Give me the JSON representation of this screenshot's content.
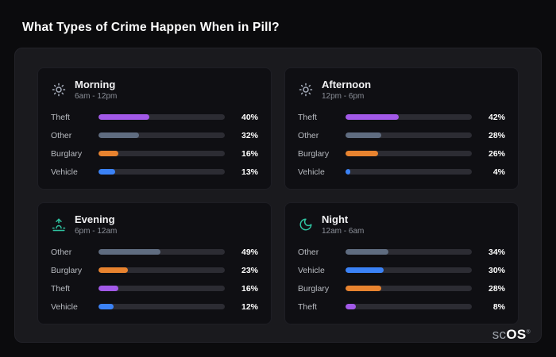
{
  "page": {
    "title": "What Types of Crime Happen When in Pill?"
  },
  "logo": {
    "prefix": "sc",
    "suffix": "OS",
    "registered": "®"
  },
  "colors": {
    "theft": "#a259e8",
    "other": "#5f6c80",
    "burglary": "#e8832f",
    "vehicle": "#3b82f6",
    "accent_teal": "#2fc2a0",
    "background": "#0b0b0d",
    "panel": "#1a1a1e",
    "card": "#0f0f13"
  },
  "chart_data": {
    "type": "bar",
    "orientation": "horizontal",
    "title": "What Types of Crime Happen When in Pill?",
    "unit": "%",
    "xlim": [
      0,
      100
    ],
    "panels": [
      {
        "title": "Morning",
        "subtitle": "6am - 12pm",
        "icon": "sun-icon",
        "icon_color": "#a6adbb",
        "rows": [
          {
            "label": "Theft",
            "value": 40,
            "display": "40%",
            "color": "#a259e8"
          },
          {
            "label": "Other",
            "value": 32,
            "display": "32%",
            "color": "#5f6c80"
          },
          {
            "label": "Burglary",
            "value": 16,
            "display": "16%",
            "color": "#e8832f"
          },
          {
            "label": "Vehicle",
            "value": 13,
            "display": "13%",
            "color": "#3b82f6"
          }
        ]
      },
      {
        "title": "Afternoon",
        "subtitle": "12pm - 6pm",
        "icon": "sun-icon",
        "icon_color": "#a6adbb",
        "rows": [
          {
            "label": "Theft",
            "value": 42,
            "display": "42%",
            "color": "#a259e8"
          },
          {
            "label": "Other",
            "value": 28,
            "display": "28%",
            "color": "#5f6c80"
          },
          {
            "label": "Burglary",
            "value": 26,
            "display": "26%",
            "color": "#e8832f"
          },
          {
            "label": "Vehicle",
            "value": 4,
            "display": "4%",
            "color": "#3b82f6"
          }
        ]
      },
      {
        "title": "Evening",
        "subtitle": "6pm - 12am",
        "icon": "sunset-icon",
        "icon_color": "#2fc2a0",
        "rows": [
          {
            "label": "Other",
            "value": 49,
            "display": "49%",
            "color": "#5f6c80"
          },
          {
            "label": "Burglary",
            "value": 23,
            "display": "23%",
            "color": "#e8832f"
          },
          {
            "label": "Theft",
            "value": 16,
            "display": "16%",
            "color": "#a259e8"
          },
          {
            "label": "Vehicle",
            "value": 12,
            "display": "12%",
            "color": "#3b82f6"
          }
        ]
      },
      {
        "title": "Night",
        "subtitle": "12am - 6am",
        "icon": "moon-icon",
        "icon_color": "#2fc2a0",
        "rows": [
          {
            "label": "Other",
            "value": 34,
            "display": "34%",
            "color": "#5f6c80"
          },
          {
            "label": "Vehicle",
            "value": 30,
            "display": "30%",
            "color": "#3b82f6"
          },
          {
            "label": "Burglary",
            "value": 28,
            "display": "28%",
            "color": "#e8832f"
          },
          {
            "label": "Theft",
            "value": 8,
            "display": "8%",
            "color": "#a259e8"
          }
        ]
      }
    ]
  }
}
